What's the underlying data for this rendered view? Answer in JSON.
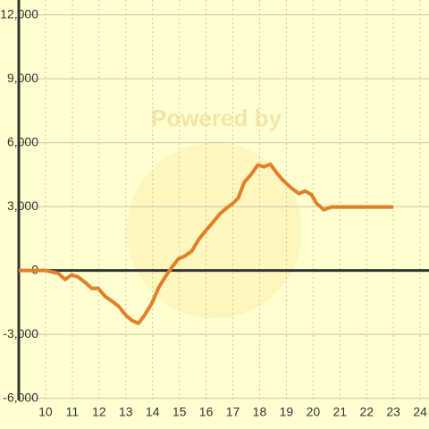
{
  "chart_data": {
    "type": "line",
    "watermark": "Powered by",
    "x": [
      9,
      10,
      10.47,
      10.73,
      10.97,
      11.2,
      11.47,
      11.73,
      11.97,
      12.23,
      12.47,
      12.73,
      13,
      13.23,
      13.47,
      13.7,
      13.97,
      14.23,
      14.5,
      14.73,
      14.97,
      15.2,
      15.47,
      15.73,
      16,
      16.23,
      16.5,
      16.77,
      17,
      17.2,
      17.43,
      17.67,
      17.93,
      18.17,
      18.4,
      18.67,
      18.9,
      19.2,
      19.47,
      19.7,
      19.93,
      20.13,
      20.4,
      20.67,
      23
    ],
    "series": [
      {
        "color": "#e0802a",
        "values": [
          0,
          0,
          -130,
          -420,
          -210,
          -290,
          -550,
          -840,
          -840,
          -1220,
          -1430,
          -1680,
          -2100,
          -2350,
          -2480,
          -2100,
          -1550,
          -800,
          -250,
          170,
          550,
          670,
          920,
          1470,
          1890,
          2220,
          2640,
          2940,
          3150,
          3400,
          4150,
          4490,
          4950,
          4870,
          4990,
          4530,
          4200,
          3860,
          3610,
          3730,
          3570,
          3150,
          2850,
          2980,
          2980
        ]
      }
    ],
    "xlim": [
      9,
      24.33
    ],
    "ylim": [
      -6100,
      12700
    ],
    "xticks": [
      10,
      11,
      12,
      13,
      14,
      15,
      16,
      17,
      18,
      19,
      20,
      21,
      22,
      23,
      24
    ],
    "yticks": [
      {
        "value": -6000,
        "label": "-6,000"
      },
      {
        "value": -3000,
        "label": "-3,000"
      },
      0,
      {
        "value": 3000,
        "label": "3,000"
      },
      {
        "value": 6000,
        "label": "6,000"
      },
      {
        "value": 9000,
        "label": "9,000"
      },
      {
        "value": 12000,
        "label": "12,000"
      }
    ],
    "grid": true
  }
}
